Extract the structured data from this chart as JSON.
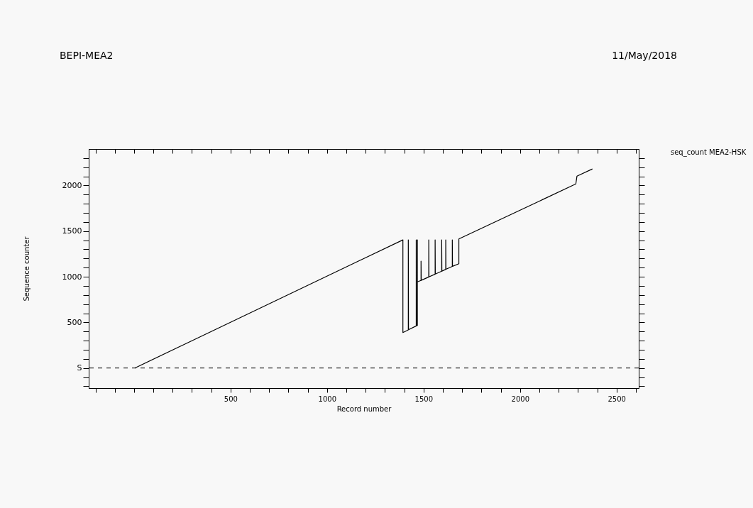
{
  "chart_data": {
    "type": "line",
    "title": "BEPI-MEA2",
    "xlabel": "Record number",
    "ylabel": "Sequence counter",
    "annotations": [
      "11/May/2018"
    ],
    "x": [
      4,
      1393,
      1393,
      1421,
      1421,
      1422,
      1462,
      1462,
      1463,
      1468,
      1468,
      1468,
      1487,
      1487,
      1488,
      1527,
      1527,
      1528,
      1560,
      1560,
      1561,
      1594,
      1594,
      1595,
      1615,
      1615,
      1616,
      1649,
      1649,
      1650,
      1683,
      1683,
      2289,
      2295,
      2375
    ],
    "series": [
      {
        "name": "seq_count MEA2-HSK",
        "color": "#000000",
        "values": [
          0,
          1404,
          389,
          418,
          1404,
          420,
          461,
          1404,
          462,
          467,
          1404,
          944,
          960,
          1171,
          961,
          998,
          1404,
          999,
          1029,
          1404,
          1030,
          1061,
          1404,
          1062,
          1081,
          1404,
          1082,
          1113,
          1404,
          1114,
          1142,
          1414,
          2017,
          2103,
          2181
        ]
      }
    ],
    "xlim": [
      -235,
      2615
    ],
    "ylim": [
      -220,
      2400
    ],
    "xticks": [
      {
        "value": -200,
        "label": null
      },
      {
        "value": -100,
        "label": null
      },
      {
        "value": 0,
        "label": null
      },
      {
        "value": 100,
        "label": null
      },
      {
        "value": 200,
        "label": null
      },
      {
        "value": 300,
        "label": null
      },
      {
        "value": 400,
        "label": null
      },
      500,
      {
        "value": 600,
        "label": null
      },
      {
        "value": 700,
        "label": null
      },
      {
        "value": 800,
        "label": null
      },
      {
        "value": 900,
        "label": null
      },
      1000,
      {
        "value": 1100,
        "label": null
      },
      {
        "value": 1200,
        "label": null
      },
      {
        "value": 1300,
        "label": null
      },
      {
        "value": 1400,
        "label": null
      },
      1500,
      {
        "value": 1600,
        "label": null
      },
      {
        "value": 1700,
        "label": null
      },
      {
        "value": 1800,
        "label": null
      },
      {
        "value": 1900,
        "label": null
      },
      2000,
      {
        "value": 2100,
        "label": null
      },
      {
        "value": 2200,
        "label": null
      },
      {
        "value": 2300,
        "label": null
      },
      {
        "value": 2400,
        "label": null
      },
      2500,
      {
        "value": 2600,
        "label": null
      }
    ],
    "yticks": [
      {
        "value": -200,
        "label": null
      },
      {
        "value": -100,
        "label": null
      },
      {
        "value": 0,
        "label": "S"
      },
      {
        "value": 100,
        "label": null
      },
      {
        "value": 200,
        "label": null
      },
      {
        "value": 300,
        "label": null
      },
      {
        "value": 400,
        "label": null
      },
      500,
      {
        "value": 600,
        "label": null
      },
      {
        "value": 700,
        "label": null
      },
      {
        "value": 800,
        "label": null
      },
      {
        "value": 900,
        "label": null
      },
      1000,
      {
        "value": 1100,
        "label": null
      },
      {
        "value": 1200,
        "label": null
      },
      {
        "value": 1300,
        "label": null
      },
      {
        "value": 1400,
        "label": null
      },
      1500,
      {
        "value": 1600,
        "label": null
      },
      {
        "value": 1700,
        "label": null
      },
      {
        "value": 1800,
        "label": null
      },
      {
        "value": 1900,
        "label": null
      },
      2000,
      {
        "value": 2100,
        "label": null
      },
      {
        "value": 2200,
        "label": null
      },
      {
        "value": 2300,
        "label": null
      }
    ],
    "ref_lines": [
      {
        "axis": "y",
        "value": 0,
        "label": null,
        "color": "#000000",
        "line_style": "dashed"
      }
    ],
    "legend": "right",
    "grid": false,
    "marker": "none",
    "line_style": "solid"
  }
}
